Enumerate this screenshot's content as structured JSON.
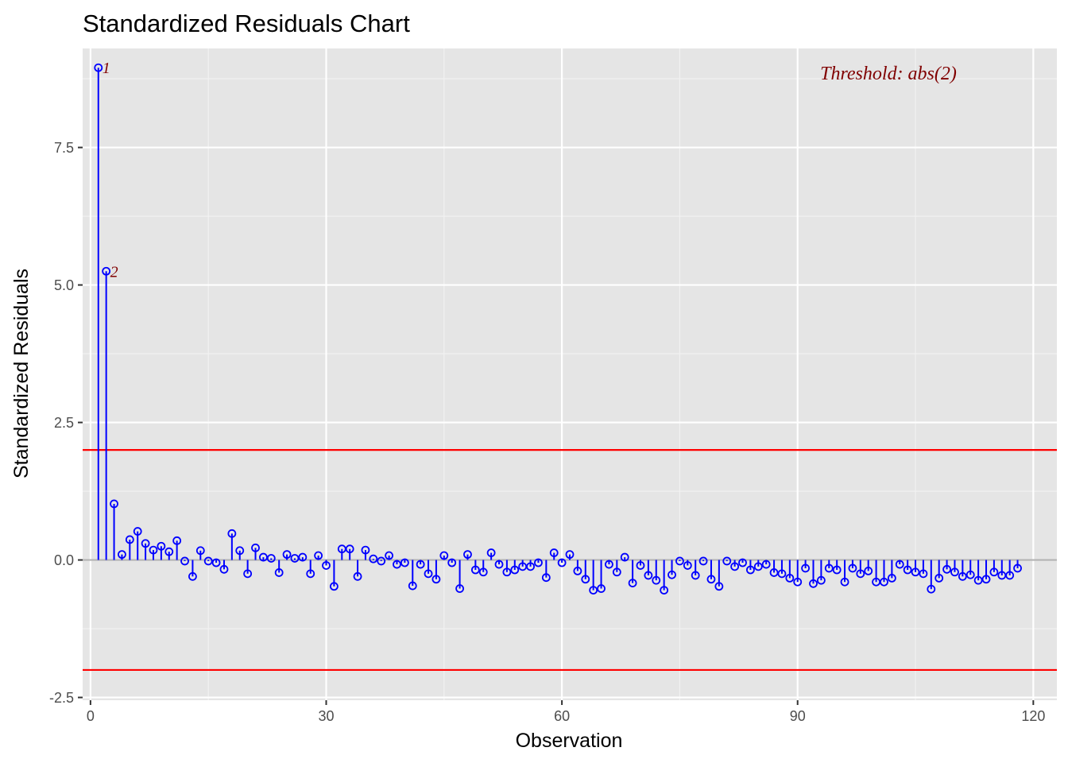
{
  "chart_data": {
    "type": "scatter",
    "subtype": "stem",
    "title": "Standardized Residuals Chart",
    "xlabel": "Observation",
    "ylabel": "Standardized Residuals",
    "xlim": [
      -1,
      123
    ],
    "ylim": [
      -2.55,
      9.3
    ],
    "xticks": [
      0,
      30,
      60,
      90,
      120
    ],
    "yticks": [
      -2.5,
      0.0,
      2.5,
      5.0,
      7.5
    ],
    "ytick_labels": [
      "-2.5",
      "0.0",
      "2.5",
      "5.0",
      "7.5"
    ],
    "grid": true,
    "thresholds": [
      2,
      -2
    ],
    "annotation": "Threshold: abs(2)",
    "point_labels": [
      {
        "x": 1,
        "text": "1"
      },
      {
        "x": 2,
        "text": "2"
      }
    ],
    "x": [
      1,
      2,
      3,
      4,
      5,
      6,
      7,
      8,
      9,
      10,
      11,
      12,
      13,
      14,
      15,
      16,
      17,
      18,
      19,
      20,
      21,
      22,
      23,
      24,
      25,
      26,
      27,
      28,
      29,
      30,
      31,
      32,
      33,
      34,
      35,
      36,
      37,
      38,
      39,
      40,
      41,
      42,
      43,
      44,
      45,
      46,
      47,
      48,
      49,
      50,
      51,
      52,
      53,
      54,
      55,
      56,
      57,
      58,
      59,
      60,
      61,
      62,
      63,
      64,
      65,
      66,
      67,
      68,
      69,
      70,
      71,
      72,
      73,
      74,
      75,
      76,
      77,
      78,
      79,
      80,
      81,
      82,
      83,
      84,
      85,
      86,
      87,
      88,
      89,
      90,
      91,
      92,
      93,
      94,
      95,
      96,
      97,
      98,
      99,
      100,
      101,
      102,
      103,
      104,
      105,
      106,
      107,
      108,
      109,
      110,
      111,
      112,
      113,
      114,
      115,
      116,
      117,
      118
    ],
    "y": [
      8.95,
      5.25,
      1.02,
      0.1,
      0.37,
      0.52,
      0.3,
      0.18,
      0.25,
      0.15,
      0.35,
      -0.02,
      -0.3,
      0.17,
      -0.02,
      -0.05,
      -0.17,
      0.48,
      0.17,
      -0.25,
      0.22,
      0.05,
      0.03,
      -0.23,
      0.1,
      0.03,
      0.05,
      -0.25,
      0.08,
      -0.1,
      -0.48,
      0.2,
      0.2,
      -0.3,
      0.18,
      0.02,
      -0.02,
      0.08,
      -0.08,
      -0.05,
      -0.47,
      -0.08,
      -0.25,
      -0.35,
      0.08,
      -0.05,
      -0.52,
      0.1,
      -0.18,
      -0.22,
      0.13,
      -0.08,
      -0.22,
      -0.18,
      -0.12,
      -0.12,
      -0.05,
      -0.32,
      0.13,
      -0.05,
      0.1,
      -0.2,
      -0.35,
      -0.55,
      -0.52,
      -0.08,
      -0.22,
      0.05,
      -0.42,
      -0.1,
      -0.28,
      -0.37,
      -0.55,
      -0.27,
      -0.02,
      -0.1,
      -0.28,
      -0.02,
      -0.35,
      -0.48,
      -0.02,
      -0.12,
      -0.05,
      -0.18,
      -0.12,
      -0.08,
      -0.23,
      -0.25,
      -0.33,
      -0.4,
      -0.15,
      -0.43,
      -0.37,
      -0.15,
      -0.18,
      -0.4,
      -0.15,
      -0.25,
      -0.2,
      -0.4,
      -0.4,
      -0.33,
      -0.08,
      -0.18,
      -0.22,
      -0.25,
      -0.53,
      -0.33,
      -0.17,
      -0.22,
      -0.3,
      -0.27,
      -0.37,
      -0.35,
      -0.22,
      -0.28,
      -0.28,
      -0.15
    ],
    "colors": {
      "stem": "#0000ff",
      "threshold": "#ff0000",
      "zero_line": "#b3b3b3",
      "annotation": "#800000",
      "panel_bg": "#e5e5e5",
      "grid_major": "#ffffff",
      "grid_minor": "#f2f2f2"
    }
  }
}
